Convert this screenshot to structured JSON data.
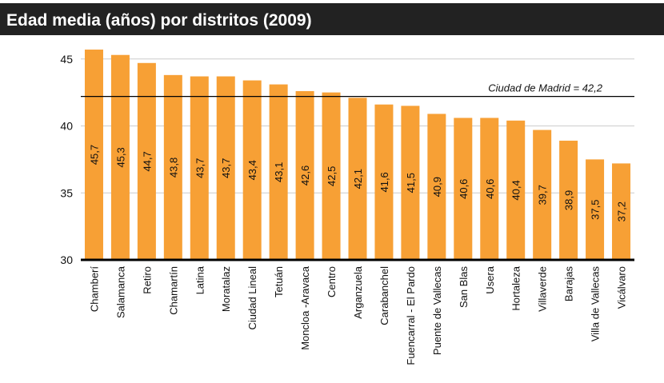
{
  "chart_data": {
    "type": "bar",
    "title": "Edad media (años) por distritos (2009)",
    "categories": [
      "Chamberí",
      "Salamanca",
      "Retiro",
      "Chamartín",
      "Latina",
      "Moratalaz",
      "Ciudad Lineal",
      "Tetuán",
      "Moncloa -Aravaca",
      "Centro",
      "Arganzuela",
      "Carabanchel",
      "Fuencarral - El Pardo",
      "Puente de Vallecas",
      "San Blas",
      "Usera",
      "Hortaleza",
      "Villaverde",
      "Barajas",
      "Villa de Vallecas",
      "Vicálvaro"
    ],
    "values": [
      45.7,
      45.3,
      44.7,
      43.8,
      43.7,
      43.7,
      43.4,
      43.1,
      42.6,
      42.5,
      42.1,
      41.6,
      41.5,
      40.9,
      40.6,
      40.6,
      40.4,
      39.7,
      38.9,
      37.5,
      37.2
    ],
    "value_labels": [
      "45,7",
      "45,3",
      "44,7",
      "43,8",
      "43,7",
      "43,7",
      "43,4",
      "43,1",
      "42,6",
      "42,5",
      "42,1",
      "41,6",
      "41,5",
      "40,9",
      "40,6",
      "40,6",
      "40,4",
      "39,7",
      "38,9",
      "37,5",
      "37,2"
    ],
    "color": "#f7a035",
    "ylim": [
      30,
      46
    ],
    "yticks": [
      30,
      35,
      40,
      45
    ],
    "grid": true,
    "reference_line": {
      "value": 42.2,
      "label": "Ciudad de Madrid = 42,2"
    }
  }
}
